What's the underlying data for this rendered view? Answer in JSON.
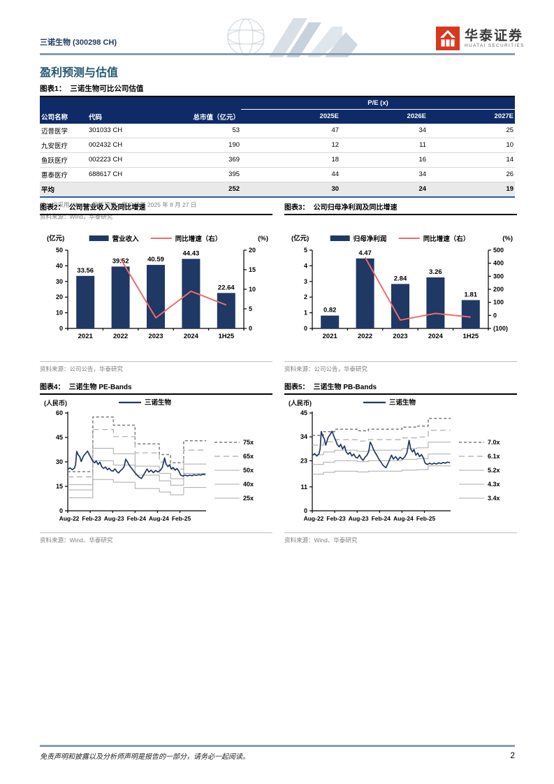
{
  "page": {
    "company_header": "三诺生物 (300298 CH)",
    "brand": {
      "cn": "华泰证券",
      "en": "HUATAI SECURITIES"
    },
    "section_title": "盈利预测与估值",
    "footer_disclaimer": "免责声明和披露以及分析师声明是报告的一部分，请务必一起阅读。",
    "page_number": "2",
    "colors": {
      "navy": "#1f3864",
      "red": "#ee6c6c",
      "table_header_bg": "#0e2b67",
      "brand_red": "#d8381f"
    }
  },
  "table": {
    "figure_label": "图表1：",
    "figure_title": "三诺生物可比公司估值",
    "pe_header": "P/E (x)",
    "columns": [
      "公司名称",
      "代码",
      "总市值（亿元）",
      "2025E",
      "2026E",
      "2027E"
    ],
    "rows": [
      [
        "迈普医学",
        "301033 CH",
        "53",
        "47",
        "34",
        "25"
      ],
      [
        "九安医疗",
        "002432 CH",
        "190",
        "12",
        "11",
        "10"
      ],
      [
        "鱼跃医疗",
        "002223 CH",
        "369",
        "18",
        "16",
        "14"
      ],
      [
        "惠泰医疗",
        "688617 CH",
        "395",
        "44",
        "34",
        "26"
      ]
    ],
    "avg_row": [
      "平均",
      "",
      "252",
      "30",
      "24",
      "19"
    ],
    "note": "注：均采用 Wind 一致性预期；定价日是 2025 年 8 月 27 日",
    "source": "资料来源：Wind，华泰研究"
  },
  "chart_data": [
    {
      "id": "fig2",
      "type": "bar",
      "figure_label": "图表2：",
      "title": "公司营业收入及同比增速",
      "left_unit": "(亿元)",
      "right_unit": "(%)",
      "legend": [
        "营业收入",
        "同比增速（右）"
      ],
      "categories": [
        "2021",
        "2022",
        "2023",
        "2024",
        "1H25"
      ],
      "bars": [
        33.56,
        39.52,
        40.59,
        44.43,
        22.64
      ],
      "bar_labels": [
        "33.56",
        "39.52",
        "40.59",
        "44.43",
        "22.64"
      ],
      "line": {
        "start_index": 1,
        "values": [
          17.8,
          2.7,
          9.5,
          6.0
        ]
      },
      "left_axis": {
        "ticks": [
          0,
          10,
          20,
          30,
          40,
          50
        ]
      },
      "right_axis": {
        "ticks": [
          0,
          5,
          10,
          15,
          20
        ]
      },
      "source": "资料来源：公司公告，华泰研究"
    },
    {
      "id": "fig3",
      "type": "bar",
      "figure_label": "图表3：",
      "title": "公司归母净利润及同比增速",
      "left_unit": "(亿元)",
      "right_unit": "(%)",
      "legend": [
        "归母净利润",
        "同比增速（右）"
      ],
      "categories": [
        "2021",
        "2022",
        "2023",
        "2024",
        "1H25"
      ],
      "bars": [
        0.82,
        4.47,
        2.84,
        3.26,
        1.81
      ],
      "bar_labels": [
        "0.82",
        "4.47",
        "2.84",
        "3.26",
        "1.81"
      ],
      "line": {
        "start_index": 1,
        "values": [
          445,
          -36,
          15,
          -13
        ]
      },
      "left_axis": {
        "ticks": [
          0,
          1,
          2,
          3,
          4,
          5
        ]
      },
      "right_axis": {
        "ticks": [
          -100,
          0,
          100,
          200,
          300,
          400,
          500
        ]
      },
      "source": "资料来源：公司公告，华泰研究"
    },
    {
      "id": "fig4",
      "type": "line",
      "figure_label": "图表4：",
      "title": "三诺生物 PE-Bands",
      "unit": "(人民币)",
      "legend": "三诺生物",
      "x_ticks": [
        "Aug-22",
        "Feb-23",
        "Aug-23",
        "Feb-24",
        "Aug-24",
        "Feb-25"
      ],
      "x_tick_months": [
        0,
        6,
        12,
        18,
        24,
        30
      ],
      "x_max": 37,
      "y_ticks": [
        0,
        15,
        30,
        45,
        60
      ],
      "multiples": [
        {
          "label": "75x",
          "mult": 75,
          "style": "dash-dark"
        },
        {
          "label": "65x",
          "mult": 65,
          "style": "dash-light"
        },
        {
          "label": "50x",
          "mult": 50,
          "style": "solid"
        },
        {
          "label": "40x",
          "mult": 40,
          "style": "solid"
        },
        {
          "label": "25x",
          "mult": 25,
          "style": "solid"
        }
      ],
      "per_share_steps": [
        [
          0,
          0.32
        ],
        [
          6.7,
          0.767
        ],
        [
          12.2,
          0.7
        ],
        [
          18,
          0.547
        ],
        [
          24.5,
          0.46
        ],
        [
          27.5,
          0.393
        ],
        [
          31,
          0.573
        ]
      ],
      "price": [
        [
          0,
          25.5
        ],
        [
          0.6,
          26.3
        ],
        [
          1.2,
          25.2
        ],
        [
          1.8,
          26.2
        ],
        [
          2.1,
          28.5
        ],
        [
          2.4,
          36.5
        ],
        [
          2.8,
          34.3
        ],
        [
          3.2,
          33.2
        ],
        [
          3.6,
          30.2
        ],
        [
          4.2,
          33.6
        ],
        [
          4.8,
          35.2
        ],
        [
          5.3,
          36.6
        ],
        [
          5.8,
          34.2
        ],
        [
          6.2,
          32.6
        ],
        [
          6.7,
          30.4
        ],
        [
          7.2,
          29.4
        ],
        [
          7.6,
          30.6
        ],
        [
          8.1,
          28.4
        ],
        [
          8.6,
          29.8
        ],
        [
          9.1,
          27.0
        ],
        [
          9.6,
          26.0
        ],
        [
          10.1,
          26.9
        ],
        [
          10.6,
          25.2
        ],
        [
          11.1,
          26.1
        ],
        [
          11.6,
          24.6
        ],
        [
          12.1,
          24.3
        ],
        [
          12.6,
          25.7
        ],
        [
          13.1,
          24.1
        ],
        [
          13.6,
          23.2
        ],
        [
          14.1,
          24.6
        ],
        [
          14.6,
          25.5
        ],
        [
          15.1,
          27.2
        ],
        [
          15.5,
          31.6
        ],
        [
          15.9,
          30.3
        ],
        [
          16.3,
          28.5
        ],
        [
          16.8,
          26.8
        ],
        [
          17.3,
          25.4
        ],
        [
          17.8,
          23.8
        ],
        [
          18.3,
          22.6
        ],
        [
          18.8,
          21.2
        ],
        [
          19.3,
          20.3
        ],
        [
          19.7,
          19.8
        ],
        [
          20.2,
          21.6
        ],
        [
          20.7,
          23.6
        ],
        [
          21.2,
          25.6
        ],
        [
          21.7,
          23.8
        ],
        [
          22.3,
          24.9
        ],
        [
          22.9,
          23.4
        ],
        [
          23.5,
          24.7
        ],
        [
          24.1,
          23.8
        ],
        [
          24.7,
          24.7
        ],
        [
          25.3,
          26.6
        ],
        [
          25.9,
          32.4
        ],
        [
          26.3,
          28.6
        ],
        [
          26.8,
          27.1
        ],
        [
          27.2,
          28.2
        ],
        [
          27.7,
          25.6
        ],
        [
          28.2,
          26.6
        ],
        [
          28.7,
          24.9
        ],
        [
          29.2,
          25.9
        ],
        [
          29.7,
          24.4
        ],
        [
          30.2,
          21.9
        ],
        [
          30.8,
          21.3
        ],
        [
          31.4,
          21.9
        ],
        [
          32.0,
          21.4
        ],
        [
          32.6,
          21.9
        ],
        [
          33.2,
          21.5
        ],
        [
          33.8,
          22.1
        ],
        [
          34.4,
          21.7
        ],
        [
          35.0,
          22.2
        ],
        [
          35.6,
          21.9
        ],
        [
          36.2,
          22.4
        ],
        [
          36.8,
          22.1
        ]
      ],
      "source": "资料来源：Wind、华泰研究"
    },
    {
      "id": "fig5",
      "type": "line",
      "figure_label": "图表5：",
      "title": "三诺生物 PB-Bands",
      "unit": "(人民币)",
      "legend": "三诺生物",
      "x_ticks": [
        "Aug-22",
        "Feb-23",
        "Aug-23",
        "Feb-24",
        "Aug-24",
        "Feb-25"
      ],
      "x_tick_months": [
        0,
        6,
        12,
        18,
        24,
        30
      ],
      "x_max": 37,
      "y_ticks": [
        0,
        11,
        23,
        34,
        45
      ],
      "multiples": [
        {
          "label": "7.0x",
          "mult": 7.0,
          "style": "dash-dark"
        },
        {
          "label": "6.1x",
          "mult": 6.1,
          "style": "dash-light"
        },
        {
          "label": "5.2x",
          "mult": 5.2,
          "style": "solid"
        },
        {
          "label": "4.3x",
          "mult": 4.3,
          "style": "solid"
        },
        {
          "label": "3.4x",
          "mult": 3.4,
          "style": "solid"
        }
      ],
      "per_share_steps": [
        [
          0,
          4.95
        ],
        [
          3,
          5.2
        ],
        [
          6,
          5.36
        ],
        [
          12,
          5.26
        ],
        [
          15,
          5.36
        ],
        [
          24,
          5.5
        ],
        [
          28,
          5.57
        ],
        [
          31,
          6.07
        ]
      ],
      "price": [
        [
          0,
          25.5
        ],
        [
          0.6,
          26.3
        ],
        [
          1.2,
          25.2
        ],
        [
          1.8,
          26.2
        ],
        [
          2.1,
          28.5
        ],
        [
          2.4,
          36.5
        ],
        [
          2.8,
          34.3
        ],
        [
          3.2,
          33.2
        ],
        [
          3.6,
          30.2
        ],
        [
          4.2,
          33.6
        ],
        [
          4.8,
          35.2
        ],
        [
          5.3,
          36.6
        ],
        [
          5.8,
          34.2
        ],
        [
          6.2,
          32.6
        ],
        [
          6.7,
          30.4
        ],
        [
          7.2,
          29.4
        ],
        [
          7.6,
          30.6
        ],
        [
          8.1,
          28.4
        ],
        [
          8.6,
          29.8
        ],
        [
          9.1,
          27.0
        ],
        [
          9.6,
          26.0
        ],
        [
          10.1,
          26.9
        ],
        [
          10.6,
          25.2
        ],
        [
          11.1,
          26.1
        ],
        [
          11.6,
          24.6
        ],
        [
          12.1,
          24.3
        ],
        [
          12.6,
          25.7
        ],
        [
          13.1,
          24.1
        ],
        [
          13.6,
          23.2
        ],
        [
          14.1,
          24.6
        ],
        [
          14.6,
          25.5
        ],
        [
          15.1,
          27.2
        ],
        [
          15.5,
          31.6
        ],
        [
          15.9,
          30.3
        ],
        [
          16.3,
          28.5
        ],
        [
          16.8,
          26.8
        ],
        [
          17.3,
          25.4
        ],
        [
          17.8,
          23.8
        ],
        [
          18.3,
          22.6
        ],
        [
          18.8,
          21.2
        ],
        [
          19.3,
          20.3
        ],
        [
          19.7,
          19.8
        ],
        [
          20.2,
          21.6
        ],
        [
          20.7,
          23.6
        ],
        [
          21.2,
          25.6
        ],
        [
          21.7,
          23.8
        ],
        [
          22.3,
          24.9
        ],
        [
          22.9,
          23.4
        ],
        [
          23.5,
          24.7
        ],
        [
          24.1,
          23.8
        ],
        [
          24.7,
          24.7
        ],
        [
          25.3,
          26.6
        ],
        [
          25.9,
          32.4
        ],
        [
          26.3,
          28.6
        ],
        [
          26.8,
          27.1
        ],
        [
          27.2,
          28.2
        ],
        [
          27.7,
          25.6
        ],
        [
          28.2,
          26.6
        ],
        [
          28.7,
          24.9
        ],
        [
          29.2,
          25.9
        ],
        [
          29.7,
          24.4
        ],
        [
          30.2,
          21.9
        ],
        [
          30.8,
          21.3
        ],
        [
          31.4,
          21.9
        ],
        [
          32.0,
          21.4
        ],
        [
          32.6,
          21.9
        ],
        [
          33.2,
          21.5
        ],
        [
          33.8,
          22.1
        ],
        [
          34.4,
          21.7
        ],
        [
          35.0,
          22.2
        ],
        [
          35.6,
          21.9
        ],
        [
          36.2,
          22.4
        ],
        [
          36.8,
          22.1
        ]
      ],
      "source": "资料来源：Wind、华泰研究"
    }
  ]
}
